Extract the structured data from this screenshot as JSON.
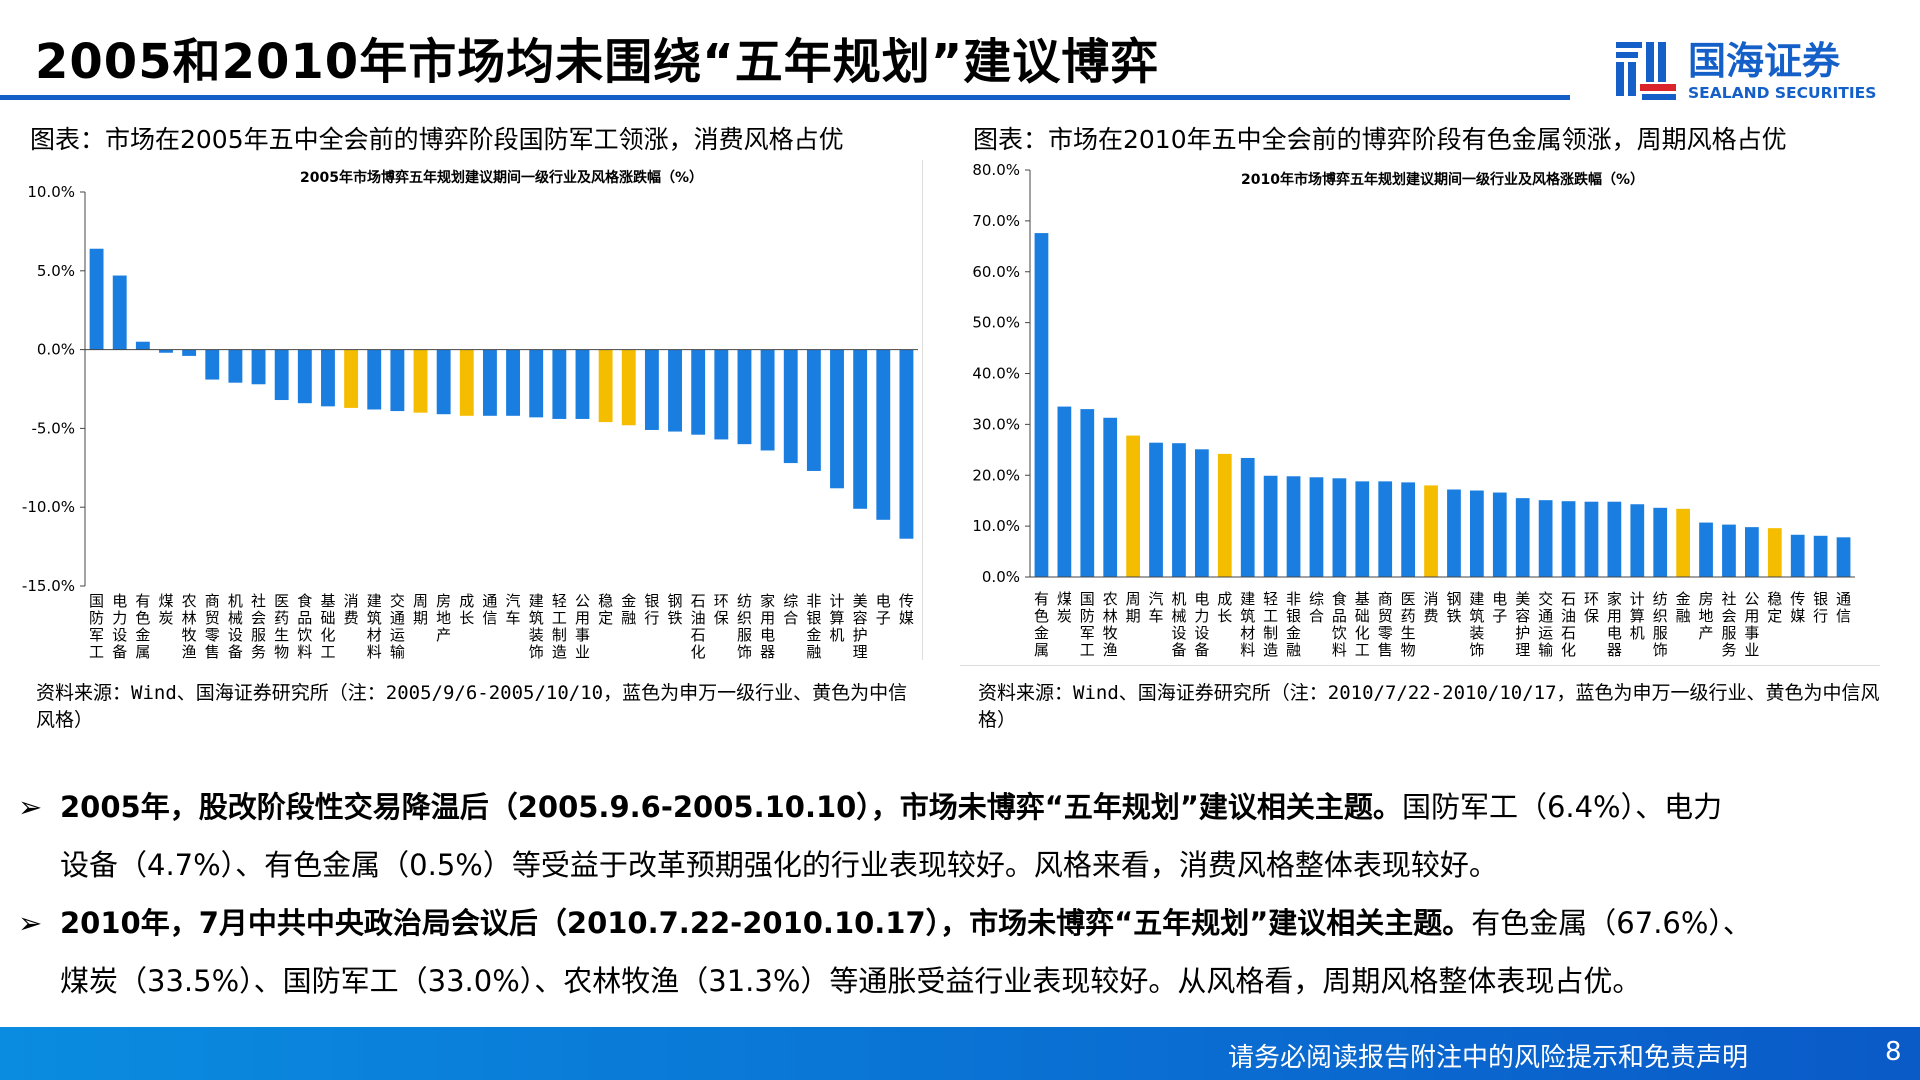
{
  "header": {
    "title": "2005和2010年市场均未围绕“五年规划”建议博弈",
    "logo_cn": "国海证券",
    "logo_en": "SEALAND SECURITIES"
  },
  "left": {
    "subtitle": "图表：市场在2005年五中全会前的博弈阶段国防军工领涨，消费风格占优",
    "source": "资料来源：Wind、国海证券研究所（注：2005/9/6-2005/10/10，蓝色为申万一级行业、黄色为中信风格）"
  },
  "right": {
    "subtitle": "图表：市场在2010年五中全会前的博弈阶段有色金属领涨，周期风格占优",
    "source": "资料来源：Wind、国海证券研究所（注：2010/7/22-2010/10/17，蓝色为申万一级行业、黄色为中信风格）"
  },
  "colors": {
    "industry": "#1a7ee0",
    "style": "#f5bd00",
    "accent": "#1560c8"
  },
  "chart_data": [
    {
      "type": "bar",
      "title": "2005年市场博弈五年规划建议期间一级行业及风格涨跌幅（%）",
      "ylim": [
        -15,
        10
      ],
      "yticks": [
        10,
        5,
        0,
        -5,
        -10,
        -15
      ],
      "tick_labels": [
        "10.0%",
        "5.0%",
        "0.0%",
        "-5.0%",
        "-10.0%",
        "-15.0%"
      ],
      "categories": [
        "国防军工",
        "电力设备",
        "有色金属",
        "煤炭",
        "农林牧渔",
        "商贸零售",
        "机械设备",
        "社会服务",
        "医药生物",
        "食品饮料",
        "基础化工",
        "消费",
        "建筑材料",
        "交通运输",
        "周期",
        "房地产",
        "成长",
        "通信",
        "汽车",
        "建筑装饰",
        "轻工制造",
        "公用事业",
        "稳定",
        "金融",
        "银行",
        "钢铁",
        "石油石化",
        "环保",
        "纺织服饰",
        "家用电器",
        "综合",
        "非银金融",
        "计算机",
        "美容护理",
        "电子",
        "传媒"
      ],
      "values": [
        6.4,
        4.7,
        0.5,
        -0.2,
        -0.4,
        -1.9,
        -2.1,
        -2.2,
        -3.2,
        -3.4,
        -3.6,
        -3.7,
        -3.8,
        -3.9,
        -4.0,
        -4.1,
        -4.2,
        -4.2,
        -4.2,
        -4.3,
        -4.4,
        -4.4,
        -4.6,
        -4.8,
        -5.1,
        -5.2,
        -5.4,
        -5.7,
        -6.0,
        -6.4,
        -7.2,
        -7.7,
        -8.8,
        -10.1,
        -10.8,
        -12.0
      ],
      "style_categories": [
        "消费",
        "周期",
        "成长",
        "稳定",
        "金融"
      ]
    },
    {
      "type": "bar",
      "title": "2010年市场博弈五年规划建议期间一级行业及风格涨跌幅（%）",
      "ylim": [
        0,
        80
      ],
      "yticks": [
        80,
        70,
        60,
        50,
        40,
        30,
        20,
        10,
        0
      ],
      "tick_labels": [
        "80.0%",
        "70.0%",
        "60.0%",
        "50.0%",
        "40.0%",
        "30.0%",
        "20.0%",
        "10.0%",
        "0.0%"
      ],
      "categories": [
        "有色金属",
        "煤炭",
        "国防军工",
        "农林牧渔",
        "周期",
        "汽车",
        "机械设备",
        "电力设备",
        "成长",
        "建筑材料",
        "轻工制造",
        "非银金融",
        "综合",
        "食品饮料",
        "基础化工",
        "商贸零售",
        "医药生物",
        "消费",
        "钢铁",
        "建筑装饰",
        "电子",
        "美容护理",
        "交通运输",
        "石油石化",
        "环保",
        "家用电器",
        "计算机",
        "纺织服饰",
        "金融",
        "房地产",
        "社会服务",
        "公用事业",
        "稳定",
        "传媒",
        "银行",
        "通信"
      ],
      "values": [
        67.6,
        33.5,
        33.0,
        31.3,
        27.8,
        26.4,
        26.3,
        25.1,
        24.2,
        23.4,
        19.9,
        19.8,
        19.6,
        19.4,
        18.8,
        18.8,
        18.6,
        18.0,
        17.2,
        17.0,
        16.6,
        15.5,
        15.1,
        14.9,
        14.8,
        14.8,
        14.3,
        13.6,
        13.4,
        10.7,
        10.3,
        9.8,
        9.6,
        8.3,
        8.1,
        7.8
      ],
      "style_categories": [
        "周期",
        "成长",
        "消费",
        "金融",
        "稳定"
      ]
    }
  ],
  "bullets": [
    {
      "bold": "2005年，股改阶段性交易降温后（2005.9.6-2005.10.10），市场未博弈“五年规划”建议相关主题。",
      "text": "国防军工（6.4%）、电力",
      "text2": "设备（4.7%）、有色金属（0.5%）等受益于改革预期强化的行业表现较好。风格来看，消费风格整体表现较好。"
    },
    {
      "bold": "2010年，7月中共中央政治局会议后（2010.7.22-2010.10.17），市场未博弈“五年规划”建议相关主题。",
      "text": "有色金属（67.6%）、",
      "text2": "煤炭（33.5%）、国防军工（33.0%）、农林牧渔（31.3%）等通胀受益行业表现较好。从风格看，周期风格整体表现占优。"
    }
  ],
  "footer": {
    "disclaimer": "请务必阅读报告附注中的风险提示和免责声明",
    "page": "8"
  }
}
